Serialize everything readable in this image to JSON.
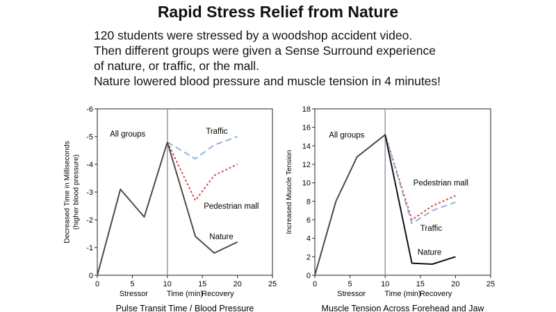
{
  "title": "Rapid Stress Relief from Nature",
  "description": [
    "120 students were stressed by a woodshop accident video.",
    "Then different groups were given a Sense Surround experience",
    "of nature, or traffic, or the mall.",
    "Nature lowered blood pressure and muscle tension in 4 minutes!"
  ],
  "chart_data": [
    {
      "type": "line",
      "title": "Pulse Transit Time / Blood Pressure",
      "ylabel": [
        "Decreased Time in Milliseconds",
        "(higher blood pressure)"
      ],
      "xlim": [
        0,
        25
      ],
      "ylim": [
        0,
        -6
      ],
      "x_ticks": [
        0,
        5,
        10,
        15,
        20,
        25
      ],
      "y_ticks": [
        0,
        -1,
        -2,
        -3,
        -4,
        -5,
        -6
      ],
      "y_tick_labels": [
        "0",
        "-1",
        "-2",
        "-3",
        "-4",
        "-5",
        "-6"
      ],
      "phase_labels": [
        {
          "text": "Stressor",
          "x": 5.2
        },
        {
          "text": "Time (min)",
          "x": 12.5
        },
        {
          "text": "Recovery",
          "x": 17.2
        }
      ],
      "divider_x": 10,
      "grid": false,
      "series": [
        {
          "name": "All groups",
          "style": "solid",
          "color": "#4a4a4a",
          "x": [
            0,
            3.3,
            6.7,
            10
          ],
          "y": [
            0,
            -3.1,
            -2.1,
            -4.8
          ]
        },
        {
          "name": "Traffic",
          "style": "dashed",
          "color": "#8ab4dc",
          "x": [
            10,
            14,
            16.7,
            20
          ],
          "y": [
            -4.8,
            -4.2,
            -4.7,
            -5.0
          ]
        },
        {
          "name": "Pedestrian mall",
          "style": "dotted",
          "color": "#e0444c",
          "x": [
            10,
            14,
            16.7,
            20
          ],
          "y": [
            -4.8,
            -2.7,
            -3.6,
            -4.0
          ]
        },
        {
          "name": "Nature",
          "style": "solid",
          "color": "#4a4a4a",
          "x": [
            10,
            14,
            16.7,
            20
          ],
          "y": [
            -4.8,
            -1.4,
            -0.8,
            -1.2
          ]
        }
      ],
      "annotations": [
        {
          "text": "All groups",
          "x": 1.8,
          "y": -5.0
        },
        {
          "text": "Traffic",
          "x": 15.5,
          "y": -5.1
        },
        {
          "text": "Pedestrian mall",
          "x": 15.2,
          "y": -2.4
        },
        {
          "text": "Nature",
          "x": 16.0,
          "y": -1.3
        }
      ]
    },
    {
      "type": "line",
      "title": "Muscle Tension Across Forehead and Jaw",
      "ylabel": [
        "Increased Muscle Tension"
      ],
      "xlim": [
        0,
        25
      ],
      "ylim": [
        0,
        18
      ],
      "x_ticks": [
        0,
        5,
        10,
        15,
        20,
        25
      ],
      "y_ticks": [
        0,
        2,
        4,
        6,
        8,
        10,
        12,
        14,
        16,
        18
      ],
      "y_tick_labels": [
        "0",
        "2",
        "4",
        "6",
        "8",
        "10",
        "12",
        "14",
        "16",
        "18"
      ],
      "phase_labels": [
        {
          "text": "Stressor",
          "x": 5.2
        },
        {
          "text": "Time (min)",
          "x": 12.5
        },
        {
          "text": "Recovery",
          "x": 17.2
        }
      ],
      "divider_x": 10,
      "grid": false,
      "series": [
        {
          "name": "All groups",
          "style": "solid",
          "color": "#4a4a4a",
          "x": [
            0,
            3,
            6,
            10
          ],
          "y": [
            0,
            8,
            12.8,
            15.2
          ]
        },
        {
          "name": "Pedestrian mall",
          "style": "dotted",
          "color": "#e0444c",
          "x": [
            10,
            13.8,
            16.7,
            20
          ],
          "y": [
            15.2,
            6.0,
            7.5,
            8.6
          ]
        },
        {
          "name": "Traffic",
          "style": "dashed",
          "color": "#8ab4dc",
          "x": [
            10,
            13.8,
            16.7,
            20
          ],
          "y": [
            15.2,
            5.6,
            7.0,
            7.9
          ]
        },
        {
          "name": "Nature",
          "style": "solid",
          "color": "#111111",
          "x": [
            10,
            13.8,
            16.7,
            20
          ],
          "y": [
            15.2,
            1.3,
            1.2,
            2.0
          ]
        }
      ],
      "annotations": [
        {
          "text": "All groups",
          "x": 2.0,
          "y": 14.9
        },
        {
          "text": "Pedestrian mall",
          "x": 14.0,
          "y": 9.7
        },
        {
          "text": "Traffic",
          "x": 15.0,
          "y": 4.8
        },
        {
          "text": "Nature",
          "x": 14.6,
          "y": 2.2
        }
      ]
    }
  ]
}
